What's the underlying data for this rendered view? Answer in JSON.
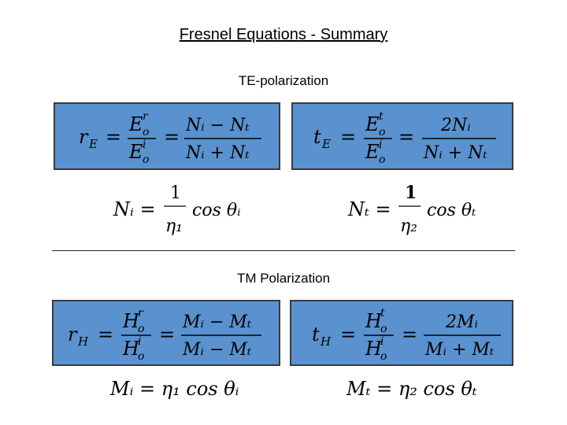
{
  "slide": {
    "title": "Fresnel Equations - Summary",
    "te_heading": "TE-polarization",
    "tm_heading": "TM Polarization"
  },
  "colors": {
    "equation_box": "#5a92cf",
    "box_border": "#3a3a3a",
    "background": "#ffffff"
  },
  "equations": {
    "rE": {
      "lhs": "r",
      "lhs_sub": "E",
      "num1": "E",
      "num1_sub": "o",
      "num1_sup": "r",
      "den1": "E",
      "den1_sub": "o",
      "den1_sup": "i",
      "num2": "Nᵢ − Nₜ",
      "den2": "Nᵢ + Nₜ"
    },
    "tE": {
      "lhs": "t",
      "lhs_sub": "E",
      "num1": "E",
      "num1_sub": "o",
      "num1_sup": "t",
      "den1": "E",
      "den1_sub": "o",
      "den1_sup": "i",
      "num2": "2Nᵢ",
      "den2": "Nᵢ + Nₜ"
    },
    "Ni": {
      "text_lhs": "Nᵢ =",
      "numer": "1",
      "denom": "η₁",
      "tail": "cos θᵢ"
    },
    "Nt": {
      "text_lhs": "Nₜ =",
      "numer": "1",
      "denom": "η₂",
      "tail": "cos θₜ"
    },
    "rH": {
      "lhs": "r",
      "lhs_sub": "H",
      "num1": "H",
      "num1_sub": "o",
      "num1_sup": "r",
      "den1": "H",
      "den1_sub": "o",
      "den1_sup": "i",
      "num2": "Mᵢ − Mₜ",
      "den2": "Mᵢ − Mₜ"
    },
    "tH": {
      "lhs": "t",
      "lhs_sub": "H",
      "num1": "H",
      "num1_sub": "o",
      "num1_sup": "t",
      "den1": "H",
      "den1_sub": "o",
      "den1_sup": "i",
      "num2": "2Mᵢ",
      "den2": "Mᵢ + Mₜ"
    },
    "Mi": "Mᵢ = η₁ cos θᵢ",
    "Mt": "Mₜ = η₂ cos θₜ"
  }
}
